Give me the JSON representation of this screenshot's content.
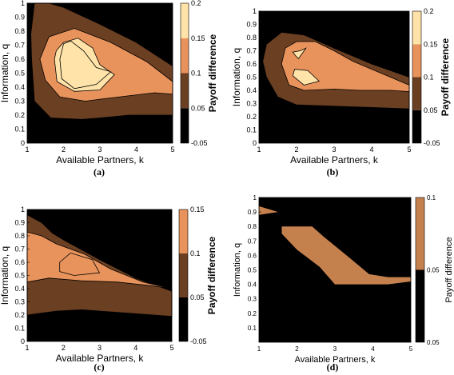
{
  "chart_data": [
    {
      "type": "contour",
      "panel": "a",
      "caption": "(a)",
      "xlabel": "Available Partners, k",
      "ylabel": "Information, q",
      "colorbar_label": "Payoff difference",
      "xlim": [
        1,
        5
      ],
      "ylim": [
        0,
        1
      ],
      "x_ticks": [
        "1",
        "2",
        "3",
        "4",
        "5"
      ],
      "y_ticks": [
        "0",
        "0.1",
        "0.2",
        "0.3",
        "0.4",
        "0.5",
        "0.6",
        "0.7",
        "0.8",
        "0.9",
        "1"
      ],
      "colorbar_ticks": [
        "-0.05",
        "0.05",
        "0.1",
        "0.15",
        "0.2"
      ],
      "levels": [
        -0.05,
        0.05,
        0.1,
        0.15,
        0.2
      ],
      "colors": [
        "#000000",
        "#6b3f22",
        "#e8935c",
        "#ffe3a8"
      ],
      "regions": [
        {
          "level": 0.05,
          "points": [
            [
              1.2,
              0.3
            ],
            [
              1.65,
              0.18
            ],
            [
              2.5,
              0.17
            ],
            [
              3,
              0.18
            ],
            [
              3.8,
              0.2
            ],
            [
              5,
              0.2
            ],
            [
              5,
              0.55
            ],
            [
              4,
              0.72
            ],
            [
              3,
              0.85
            ],
            [
              2,
              0.97
            ],
            [
              1.6,
              1
            ],
            [
              1.2,
              1
            ],
            [
              1.1,
              0.78
            ],
            [
              1.12,
              0.6
            ]
          ]
        },
        {
          "level": 0.1,
          "points": [
            [
              1.5,
              0.45
            ],
            [
              1.9,
              0.33
            ],
            [
              2.6,
              0.3
            ],
            [
              3.2,
              0.32
            ],
            [
              4.5,
              0.36
            ],
            [
              5,
              0.35
            ],
            [
              5,
              0.44
            ],
            [
              4.3,
              0.58
            ],
            [
              3.3,
              0.72
            ],
            [
              2.3,
              0.82
            ],
            [
              1.6,
              0.76
            ],
            [
              1.35,
              0.6
            ]
          ]
        },
        {
          "level": 0.15,
          "points": [
            [
              1.75,
              0.6
            ],
            [
              1.82,
              0.44
            ],
            [
              2.3,
              0.37
            ],
            [
              3,
              0.38
            ],
            [
              3.4,
              0.49
            ],
            [
              3,
              0.56
            ],
            [
              2.8,
              0.68
            ],
            [
              2.4,
              0.75
            ],
            [
              2.0,
              0.72
            ],
            [
              1.8,
              0.66
            ]
          ]
        },
        {
          "level": 0.2,
          "points": [
            [
              1.9,
              0.6
            ],
            [
              1.95,
              0.46
            ],
            [
              2.3,
              0.39
            ],
            [
              2.9,
              0.42
            ],
            [
              3.3,
              0.51
            ],
            [
              2.9,
              0.54
            ],
            [
              2.55,
              0.66
            ],
            [
              2.2,
              0.73
            ],
            [
              2.0,
              0.71
            ]
          ]
        }
      ]
    },
    {
      "type": "contour",
      "panel": "b",
      "caption": "(b)",
      "xlabel": "Available Partners, k",
      "ylabel": "Information, q",
      "colorbar_label": "Payoff difference",
      "xlim": [
        1,
        5
      ],
      "ylim": [
        0,
        1
      ],
      "x_ticks": [
        "1",
        "2",
        "3",
        "4",
        "5"
      ],
      "y_ticks": [
        "0",
        "0.1",
        "0.2",
        "0.3",
        "0.4",
        "0.5",
        "0.6",
        "0.7",
        "0.8",
        "0.9",
        "1"
      ],
      "colorbar_ticks": [
        "-0.05",
        "0.05",
        "0.1",
        "0.15",
        "0.2"
      ],
      "levels": [
        -0.05,
        0.05,
        0.1,
        0.15,
        0.2
      ],
      "colors": [
        "#000000",
        "#6b3f22",
        "#e8935c",
        "#ffe3a8"
      ],
      "regions": [
        {
          "level": 0.05,
          "points": [
            [
              1.2,
              0.5
            ],
            [
              1.5,
              0.35
            ],
            [
              2,
              0.29
            ],
            [
              3,
              0.28
            ],
            [
              4,
              0.27
            ],
            [
              5,
              0.26
            ],
            [
              5,
              0.5
            ],
            [
              4,
              0.6
            ],
            [
              3,
              0.72
            ],
            [
              2.2,
              0.82
            ],
            [
              1.6,
              0.84
            ],
            [
              1.2,
              0.75
            ],
            [
              1.1,
              0.62
            ]
          ]
        },
        {
          "level": 0.1,
          "points": [
            [
              1.6,
              0.6
            ],
            [
              1.8,
              0.44
            ],
            [
              2.2,
              0.4
            ],
            [
              3,
              0.41
            ],
            [
              3.7,
              0.4
            ],
            [
              4.5,
              0.4
            ],
            [
              5,
              0.39
            ],
            [
              5,
              0.44
            ],
            [
              4.5,
              0.5
            ],
            [
              3.5,
              0.62
            ],
            [
              3,
              0.7
            ],
            [
              2.5,
              0.77
            ],
            [
              2,
              0.77
            ],
            [
              1.7,
              0.72
            ]
          ]
        },
        {
          "level": 0.15,
          "points": [
            [
              1.9,
              0.51
            ],
            [
              2.2,
              0.44
            ],
            [
              2.6,
              0.47
            ],
            [
              2.3,
              0.55
            ],
            [
              1.95,
              0.56
            ]
          ]
        },
        {
          "level": 0.15,
          "points": [
            [
              1.9,
              0.69
            ],
            [
              2.1,
              0.7
            ],
            [
              2.25,
              0.72
            ],
            [
              2.05,
              0.64
            ],
            [
              1.98,
              0.66
            ]
          ]
        }
      ]
    },
    {
      "type": "contour",
      "panel": "c",
      "caption": "(c)",
      "xlabel": "Available Partners, k",
      "ylabel": "Information, q",
      "colorbar_label": "Payoff difference",
      "xlim": [
        1,
        5
      ],
      "ylim": [
        0,
        1
      ],
      "x_ticks": [
        "1",
        "2",
        "3",
        "4",
        "5"
      ],
      "y_ticks": [
        "0",
        "0.1",
        "0.2",
        "0.3",
        "0.4",
        "0.5",
        "0.6",
        "0.7",
        "0.8",
        "0.9",
        "1"
      ],
      "colorbar_ticks": [
        "-0.05",
        "0.05",
        "0.1",
        "0.15"
      ],
      "levels": [
        -0.05,
        0.05,
        0.1,
        0.15
      ],
      "colors": [
        "#000000",
        "#6b3f22",
        "#e8935c"
      ],
      "regions": [
        {
          "level": 0.05,
          "points": [
            [
              1,
              0.2
            ],
            [
              1.8,
              0.23
            ],
            [
              2.5,
              0.24
            ],
            [
              3.5,
              0.22
            ],
            [
              4.5,
              0.2
            ],
            [
              5,
              0.19
            ],
            [
              5,
              0.38
            ],
            [
              4,
              0.48
            ],
            [
              3,
              0.62
            ],
            [
              2,
              0.77
            ],
            [
              1.7,
              0.82
            ],
            [
              1.4,
              0.9
            ],
            [
              1,
              0.96
            ]
          ]
        },
        {
          "level": 0.1,
          "points": [
            [
              1,
              0.45
            ],
            [
              1.6,
              0.48
            ],
            [
              2.5,
              0.46
            ],
            [
              3.5,
              0.45
            ],
            [
              4.5,
              0.42
            ],
            [
              5,
              0.4
            ],
            [
              4.2,
              0.45
            ],
            [
              3.3,
              0.55
            ],
            [
              2.6,
              0.66
            ],
            [
              1.8,
              0.74
            ],
            [
              1.4,
              0.8
            ],
            [
              1,
              0.83
            ]
          ]
        },
        {
          "level": 0.15,
          "points": [
            [
              1.9,
              0.53
            ],
            [
              2.3,
              0.5
            ],
            [
              3,
              0.52
            ],
            [
              2.8,
              0.62
            ],
            [
              2.2,
              0.67
            ],
            [
              1.9,
              0.6
            ]
          ]
        }
      ]
    },
    {
      "type": "contour",
      "panel": "d",
      "caption": "(d)",
      "xlabel": "Available Partners, k",
      "ylabel": "Information, q",
      "colorbar_label": "Payoff difference",
      "xlim": [
        1,
        5
      ],
      "ylim": [
        0,
        1
      ],
      "x_ticks": [
        "1",
        "2",
        "3",
        "4",
        "5"
      ],
      "y_ticks": [
        "0.1",
        "0.2",
        "0.3",
        "0.4",
        "0.5",
        "0.6",
        "0.7",
        "0.8",
        "0.9",
        "1"
      ],
      "colorbar_ticks": [
        "0.05",
        "0.05",
        "0.1"
      ],
      "levels": [
        0.05,
        0.05,
        0.1
      ],
      "colors": [
        "#000000",
        "#c5814d"
      ],
      "regions": [
        {
          "level": 0.05,
          "points": [
            [
              1,
              0.88
            ],
            [
              1.5,
              0.9
            ],
            [
              1,
              0.94
            ]
          ]
        },
        {
          "level": 0.05,
          "points": [
            [
              1.6,
              0.8
            ],
            [
              2.4,
              0.8
            ],
            [
              2.7,
              0.73
            ],
            [
              3.4,
              0.58
            ],
            [
              3.9,
              0.47
            ],
            [
              4.4,
              0.45
            ],
            [
              5,
              0.45
            ],
            [
              5,
              0.42
            ],
            [
              4.4,
              0.4
            ],
            [
              3,
              0.4
            ],
            [
              2.6,
              0.52
            ],
            [
              2,
              0.64
            ],
            [
              1.6,
              0.75
            ]
          ]
        }
      ]
    }
  ]
}
